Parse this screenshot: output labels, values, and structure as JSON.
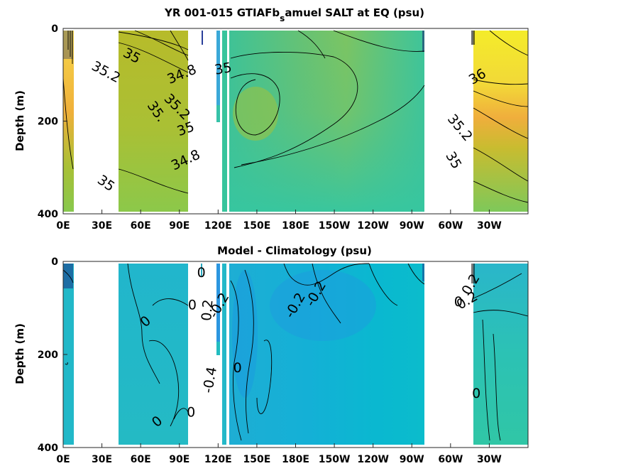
{
  "chart_data": [
    {
      "type": "heatmap",
      "title": "YR 001-015 GTIAFb",
      "title_subscript": "s",
      "title_rest": "amuel SALT at EQ (psu)",
      "xlabel": "",
      "ylabel": "Depth (m)",
      "x_ticks": [
        "0E",
        "30E",
        "60E",
        "90E",
        "120E",
        "150E",
        "180E",
        "150W",
        "120W",
        "90W",
        "60W",
        "30W"
      ],
      "x_range_deg_east": [
        0,
        360
      ],
      "y_ticks": [
        "0",
        "200",
        "400"
      ],
      "ylim": [
        400,
        0
      ],
      "y_reversed": true,
      "contour_labels": [
        {
          "text": "35",
          "lon": 53,
          "depth": 60,
          "rot": 28
        },
        {
          "text": "35.2",
          "lon": 33,
          "depth": 95,
          "rot": 28
        },
        {
          "text": "35",
          "lon": 33,
          "depth": 335,
          "rot": 35
        },
        {
          "text": "34.8",
          "lon": 92,
          "depth": 100,
          "rot": -22
        },
        {
          "text": "35",
          "lon": 124,
          "depth": 88,
          "rot": -10
        },
        {
          "text": "35.2",
          "lon": 88,
          "depth": 170,
          "rot": 45
        },
        {
          "text": "35",
          "lon": 95,
          "depth": 218,
          "rot": -20
        },
        {
          "text": "34.8",
          "lon": 95,
          "depth": 285,
          "rot": -25
        },
        {
          "text": "35.",
          "lon": 72,
          "depth": 180,
          "rot": 55
        },
        {
          "text": "36",
          "lon": 321,
          "depth": 105,
          "rot": -30
        },
        {
          "text": "35.2",
          "lon": 307,
          "depth": 215,
          "rot": 50
        },
        {
          "text": "35",
          "lon": 302,
          "depth": 285,
          "rot": 60
        }
      ]
    },
    {
      "type": "heatmap",
      "title": "Model - Climatology (psu)",
      "xlabel": "",
      "ylabel": "Depth (m)",
      "x_ticks": [
        "0E",
        "30E",
        "60E",
        "90E",
        "120E",
        "150E",
        "180E",
        "150W",
        "120W",
        "90W",
        "60W",
        "30W"
      ],
      "x_range_deg_east": [
        0,
        360
      ],
      "y_ticks": [
        "0",
        "200",
        "400"
      ],
      "ylim": [
        400,
        0
      ],
      "y_reversed": true,
      "contour_labels": [
        {
          "text": "0",
          "lon": 64,
          "depth": 130,
          "rot": -40
        },
        {
          "text": "0",
          "lon": 73,
          "depth": 345,
          "rot": -40
        },
        {
          "text": "0",
          "lon": 107,
          "depth": 25,
          "rot": 0
        },
        {
          "text": "0",
          "lon": 100,
          "depth": 95,
          "rot": 0
        },
        {
          "text": "0.2",
          "lon": 112,
          "depth": 105,
          "rot": -85
        },
        {
          "text": "-0.2",
          "lon": 121,
          "depth": 95,
          "rot": -60
        },
        {
          "text": "-0.4",
          "lon": 114,
          "depth": 255,
          "rot": -80
        },
        {
          "text": "0",
          "lon": 135,
          "depth": 230,
          "rot": 0
        },
        {
          "text": "0",
          "lon": 99,
          "depth": 325,
          "rot": 0
        },
        {
          "text": "-0.2",
          "lon": 180,
          "depth": 95,
          "rot": -60
        },
        {
          "text": "-0.2",
          "lon": 196,
          "depth": 70,
          "rot": -60
        },
        {
          "text": "0.2",
          "lon": 316,
          "depth": 50,
          "rot": -60
        },
        {
          "text": "0.2",
          "lon": 313,
          "depth": 85,
          "rot": -30
        },
        {
          "text": "0",
          "lon": 306,
          "depth": 88,
          "rot": 0
        },
        {
          "text": "0",
          "lon": 320,
          "depth": 285,
          "rot": 0
        }
      ]
    }
  ]
}
